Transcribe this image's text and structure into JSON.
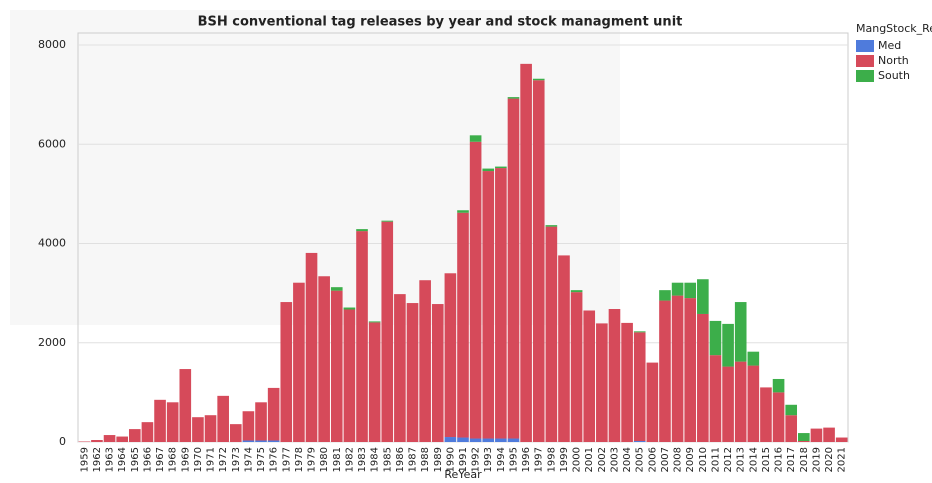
{
  "chart_data": {
    "type": "stacked-bar",
    "title": "BSH conventional tag releases by year and stock managment unit",
    "x_label": "ReYear",
    "legend_title": "MangStock_Re",
    "legend": "right",
    "grid": true,
    "categories": [
      "1959",
      "1962",
      "1963",
      "1964",
      "1965",
      "1966",
      "1967",
      "1968",
      "1969",
      "1970",
      "1971",
      "1972",
      "1973",
      "1974",
      "1975",
      "1976",
      "1977",
      "1978",
      "1979",
      "1980",
      "1981",
      "1982",
      "1983",
      "1984",
      "1985",
      "1986",
      "1987",
      "1988",
      "1989",
      "1990",
      "1991",
      "1992",
      "1993",
      "1994",
      "1995",
      "1996",
      "1997",
      "1998",
      "1999",
      "2000",
      "2001",
      "2002",
      "2003",
      "2004",
      "2005",
      "2006",
      "2007",
      "2008",
      "2009",
      "2010",
      "2011",
      "2012",
      "2013",
      "2014",
      "2015",
      "2016",
      "2017",
      "2018",
      "2019",
      "2020",
      "2021"
    ],
    "series": [
      {
        "name": "Med",
        "color": "#4f7bdc",
        "values": [
          0,
          0,
          0,
          0,
          0,
          0,
          0,
          0,
          0,
          0,
          0,
          0,
          0,
          30,
          30,
          30,
          0,
          0,
          0,
          0,
          0,
          0,
          0,
          0,
          0,
          0,
          0,
          0,
          0,
          100,
          90,
          70,
          70,
          70,
          70,
          0,
          0,
          0,
          0,
          0,
          0,
          0,
          0,
          0,
          20,
          0,
          0,
          0,
          0,
          0,
          0,
          0,
          0,
          0,
          0,
          0,
          0,
          0,
          0,
          0,
          0
        ]
      },
      {
        "name": "North",
        "color": "#d64a5a",
        "values": [
          10,
          40,
          140,
          110,
          260,
          400,
          850,
          800,
          1470,
          500,
          540,
          930,
          360,
          590,
          770,
          1060,
          2820,
          3210,
          3810,
          3340,
          3050,
          2670,
          4250,
          2410,
          4440,
          2980,
          2800,
          3260,
          2780,
          3300,
          4530,
          5980,
          5390,
          5450,
          6850,
          7620,
          7290,
          4340,
          3760,
          3020,
          2650,
          2390,
          2680,
          2400,
          2190,
          1600,
          2850,
          2950,
          2900,
          2580,
          1750,
          1520,
          1620,
          1540,
          1100,
          1000,
          540,
          20,
          270,
          290,
          90
        ]
      },
      {
        "name": "South",
        "color": "#3cae4a",
        "values": [
          0,
          0,
          0,
          0,
          0,
          0,
          0,
          0,
          0,
          0,
          0,
          0,
          0,
          0,
          0,
          0,
          0,
          0,
          0,
          0,
          70,
          40,
          40,
          20,
          20,
          0,
          0,
          0,
          0,
          0,
          50,
          130,
          50,
          30,
          30,
          0,
          30,
          30,
          0,
          40,
          0,
          0,
          0,
          0,
          20,
          0,
          210,
          260,
          310,
          700,
          690,
          860,
          1200,
          280,
          0,
          270,
          210,
          160,
          0,
          0,
          0
        ]
      }
    ],
    "ylim": [
      0,
      8000
    ],
    "yticks": [
      0,
      2000,
      4000,
      6000,
      8000
    ]
  }
}
